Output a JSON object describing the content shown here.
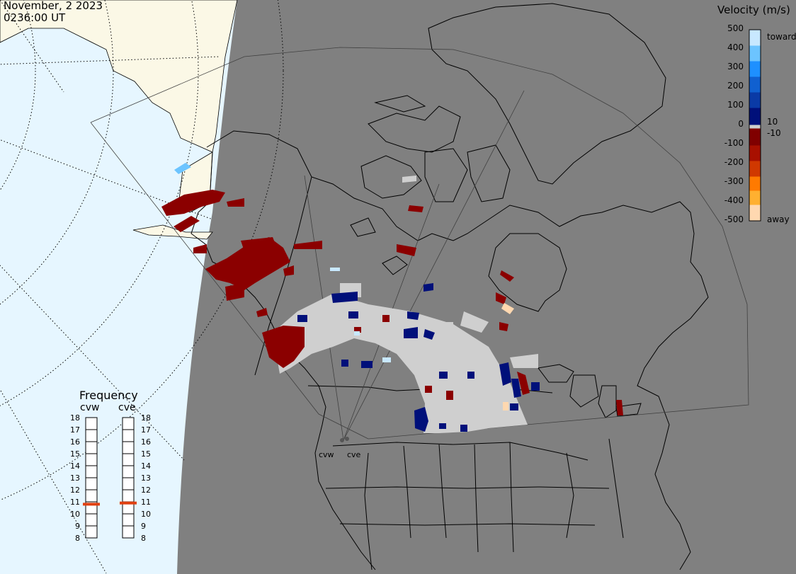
{
  "header": {
    "date": "November, 2 2023",
    "time": "0236:00 UT"
  },
  "velocity_legend": {
    "title": "Velocity (m/s)",
    "ticks": [
      "500",
      "400",
      "300",
      "200",
      "100",
      "0",
      "-100",
      "-200",
      "-300",
      "-400",
      "-500"
    ],
    "label_toward": "toward",
    "label_away": "away",
    "label_pos10": "10",
    "label_neg10": "-10",
    "colors": [
      "#c8e8ff",
      "#6cc4ff",
      "#1e90ff",
      "#1060d0",
      "#0a3aa6",
      "#00107a",
      "#800000",
      "#a81000",
      "#d03800",
      "#ff7a00",
      "#ffb030",
      "#ffd8b0"
    ]
  },
  "frequency": {
    "title": "Frequency",
    "radars": [
      {
        "name": "cvw",
        "value_mhz": 10.8
      },
      {
        "name": "cve",
        "value_mhz": 10.9
      }
    ],
    "ticks": [
      "18",
      "17",
      "16",
      "15",
      "14",
      "13",
      "12",
      "11",
      "10",
      "9",
      "8"
    ]
  },
  "radar_labels": [
    "cvw",
    "cve"
  ],
  "colors": {
    "ocean": "#e6f6ff",
    "night": "#808080",
    "land_day": "#fbf8e6",
    "ground_scatter": "#cfcfcf",
    "toward_strong": "#00107a",
    "away_strong": "#8b0000"
  }
}
